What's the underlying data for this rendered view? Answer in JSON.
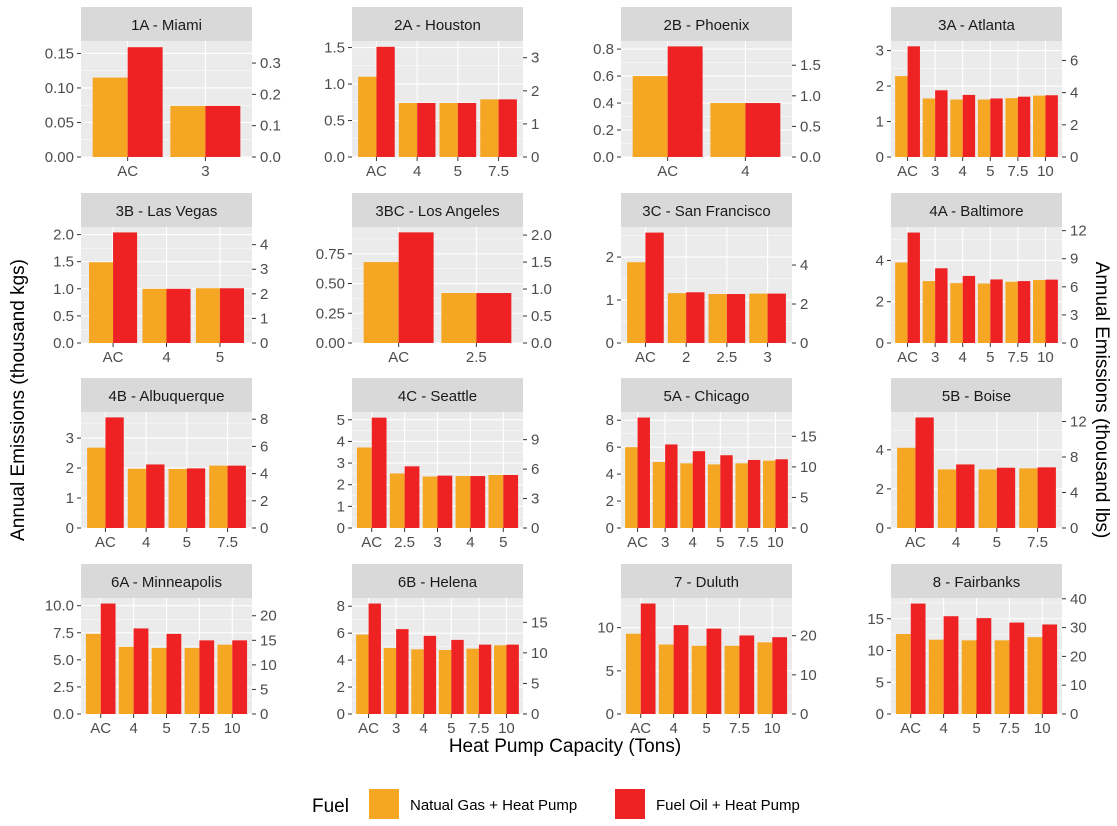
{
  "colors": {
    "gas": "#F5A623",
    "oil": "#EE2222",
    "panel_bg": "#EBEBEB",
    "strip_bg": "#D9D9D9",
    "grid": "#FFFFFF"
  },
  "axis_titles": {
    "x": "Heat Pump Capacity (Tons)",
    "y_left": "Annual Emissions (thousand kgs)",
    "y_right": "Annual Emissions (thousand lbs)"
  },
  "legend": {
    "title": "Fuel",
    "items": [
      "Natual Gas + Heat Pump",
      "Fuel Oil  + Heat Pump"
    ]
  },
  "chart_data": {
    "type": "bar",
    "facets": [
      {
        "title": "1A - Miami",
        "categories": [
          "AC",
          "3"
        ],
        "gas": [
          0.115,
          0.074
        ],
        "oil": [
          0.159,
          0.074
        ],
        "ylim": [
          0,
          0.168
        ],
        "left_ticks": [
          "0.00",
          "0.05",
          "0.10",
          "0.15"
        ],
        "right_ticks": [
          "0.0",
          "0.1",
          "0.2",
          "0.3"
        ]
      },
      {
        "title": "2A - Houston",
        "categories": [
          "AC",
          "4",
          "5",
          "7.5"
        ],
        "gas": [
          1.1,
          0.74,
          0.74,
          0.79
        ],
        "oil": [
          1.51,
          0.74,
          0.74,
          0.79
        ],
        "ylim": [
          0,
          1.59
        ],
        "left_ticks": [
          "0.0",
          "0.5",
          "1.0",
          "1.5"
        ],
        "right_ticks": [
          "0",
          "1",
          "2",
          "3"
        ]
      },
      {
        "title": "2B - Phoenix",
        "categories": [
          "AC",
          "4"
        ],
        "gas": [
          0.6,
          0.4
        ],
        "oil": [
          0.82,
          0.4
        ],
        "ylim": [
          0,
          0.86
        ],
        "left_ticks": [
          "0.0",
          "0.2",
          "0.4",
          "0.6",
          "0.8"
        ],
        "right_ticks": [
          "0.0",
          "0.5",
          "1.0",
          "1.5"
        ]
      },
      {
        "title": "3A - Atlanta",
        "categories": [
          "AC",
          "3",
          "4",
          "5",
          "7.5",
          "10"
        ],
        "gas": [
          2.28,
          1.65,
          1.62,
          1.62,
          1.66,
          1.73
        ],
        "oil": [
          3.12,
          1.88,
          1.75,
          1.65,
          1.7,
          1.74
        ],
        "ylim": [
          0,
          3.27
        ],
        "left_ticks": [
          "0",
          "1",
          "2",
          "3"
        ],
        "right_ticks": [
          "0",
          "2",
          "4",
          "6"
        ]
      },
      {
        "title": "3B - Las Vegas",
        "categories": [
          "AC",
          "4",
          "5"
        ],
        "gas": [
          1.49,
          1.0,
          1.01
        ],
        "oil": [
          2.04,
          1.0,
          1.01
        ],
        "ylim": [
          0,
          2.14
        ],
        "left_ticks": [
          "0.0",
          "0.5",
          "1.0",
          "1.5",
          "2.0"
        ],
        "right_ticks": [
          "0",
          "1",
          "2",
          "3",
          "4"
        ]
      },
      {
        "title": "3BC - Los Angeles",
        "categories": [
          "AC",
          "2.5"
        ],
        "gas": [
          0.68,
          0.42
        ],
        "oil": [
          0.93,
          0.42
        ],
        "ylim": [
          0,
          0.975
        ],
        "left_ticks": [
          "0.00",
          "0.25",
          "0.50",
          "0.75"
        ],
        "right_ticks": [
          "0.0",
          "0.5",
          "1.0",
          "1.5",
          "2.0"
        ]
      },
      {
        "title": "3C - San Francisco",
        "categories": [
          "AC",
          "2",
          "2.5",
          "3"
        ],
        "gas": [
          1.88,
          1.16,
          1.14,
          1.15
        ],
        "oil": [
          2.57,
          1.18,
          1.14,
          1.15
        ],
        "ylim": [
          0,
          2.7
        ],
        "left_ticks": [
          "0",
          "1",
          "2"
        ],
        "right_ticks": [
          "0",
          "2",
          "4"
        ]
      },
      {
        "title": "4A - Baltimore",
        "categories": [
          "AC",
          "3",
          "4",
          "5",
          "7.5",
          "10"
        ],
        "gas": [
          3.9,
          3.0,
          2.9,
          2.88,
          2.97,
          3.05
        ],
        "oil": [
          5.35,
          3.62,
          3.25,
          3.08,
          3.0,
          3.07
        ],
        "ylim": [
          0,
          5.62
        ],
        "left_ticks": [
          "0",
          "2",
          "4"
        ],
        "right_ticks": [
          "0",
          "3",
          "6",
          "9",
          "12"
        ]
      },
      {
        "title": "4B - Albuquerque",
        "categories": [
          "AC",
          "4",
          "5",
          "7.5"
        ],
        "gas": [
          2.68,
          1.98,
          1.97,
          2.08
        ],
        "oil": [
          3.69,
          2.12,
          1.99,
          2.08
        ],
        "ylim": [
          0,
          3.87
        ],
        "left_ticks": [
          "0",
          "1",
          "2",
          "3"
        ],
        "right_ticks": [
          "0",
          "2",
          "4",
          "6",
          "8"
        ]
      },
      {
        "title": "4C - Seattle",
        "categories": [
          "AC",
          "2.5",
          "3",
          "4",
          "5"
        ],
        "gas": [
          3.72,
          2.52,
          2.38,
          2.4,
          2.45
        ],
        "oil": [
          5.1,
          2.85,
          2.42,
          2.4,
          2.45
        ],
        "ylim": [
          0,
          5.36
        ],
        "left_ticks": [
          "0",
          "1",
          "2",
          "3",
          "4",
          "5"
        ],
        "right_ticks": [
          "0",
          "3",
          "6",
          "9"
        ]
      },
      {
        "title": "5A - Chicago",
        "categories": [
          "AC",
          "3",
          "4",
          "5",
          "7.5",
          "10"
        ],
        "gas": [
          6.0,
          4.9,
          4.8,
          4.72,
          4.8,
          5.0
        ],
        "oil": [
          8.2,
          6.2,
          5.7,
          5.4,
          5.05,
          5.1
        ],
        "ylim": [
          0,
          8.61
        ],
        "left_ticks": [
          "0",
          "2",
          "4",
          "6",
          "8"
        ],
        "right_ticks": [
          "0",
          "5",
          "10",
          "15"
        ]
      },
      {
        "title": "5B - Boise",
        "categories": [
          "AC",
          "4",
          "5",
          "7.5"
        ],
        "gas": [
          4.1,
          3.0,
          3.0,
          3.05
        ],
        "oil": [
          5.65,
          3.25,
          3.08,
          3.1
        ],
        "ylim": [
          0,
          5.93
        ],
        "left_ticks": [
          "0",
          "2",
          "4"
        ],
        "right_ticks": [
          "0",
          "4",
          "8",
          "12"
        ]
      },
      {
        "title": "6A - Minneapolis",
        "categories": [
          "AC",
          "4",
          "5",
          "7.5",
          "10"
        ],
        "gas": [
          7.4,
          6.2,
          6.1,
          6.1,
          6.4
        ],
        "oil": [
          10.2,
          7.9,
          7.4,
          6.8,
          6.8
        ],
        "ylim": [
          0,
          10.71
        ],
        "left_ticks": [
          "0.0",
          "2.5",
          "5.0",
          "7.5",
          "10.0"
        ],
        "right_ticks": [
          "0",
          "5",
          "10",
          "15",
          "20"
        ]
      },
      {
        "title": "6B - Helena",
        "categories": [
          "AC",
          "3",
          "4",
          "5",
          "7.5",
          "10"
        ],
        "gas": [
          5.9,
          4.9,
          4.8,
          4.75,
          4.85,
          5.1
        ],
        "oil": [
          8.2,
          6.3,
          5.8,
          5.5,
          5.15,
          5.15
        ],
        "ylim": [
          0,
          8.61
        ],
        "left_ticks": [
          "0",
          "2",
          "4",
          "6",
          "8"
        ],
        "right_ticks": [
          "0",
          "5",
          "10",
          "15"
        ]
      },
      {
        "title": "7 - Duluth",
        "categories": [
          "AC",
          "4",
          "5",
          "7.5",
          "10"
        ],
        "gas": [
          9.3,
          8.05,
          7.9,
          7.9,
          8.3
        ],
        "oil": [
          12.8,
          10.3,
          9.9,
          9.1,
          8.9
        ],
        "ylim": [
          0,
          13.44
        ],
        "left_ticks": [
          "0",
          "5",
          "10"
        ],
        "right_ticks": [
          "0",
          "10",
          "20"
        ]
      },
      {
        "title": "8 - Fairbanks",
        "categories": [
          "AC",
          "4",
          "5",
          "7.5",
          "10"
        ],
        "gas": [
          12.6,
          11.7,
          11.6,
          11.6,
          12.1
        ],
        "oil": [
          17.4,
          15.4,
          15.1,
          14.4,
          14.1
        ],
        "ylim": [
          0,
          18.27
        ],
        "left_ticks": [
          "0",
          "5",
          "10",
          "15"
        ],
        "right_ticks": [
          "0",
          "10",
          "20",
          "30",
          "40"
        ]
      }
    ]
  }
}
